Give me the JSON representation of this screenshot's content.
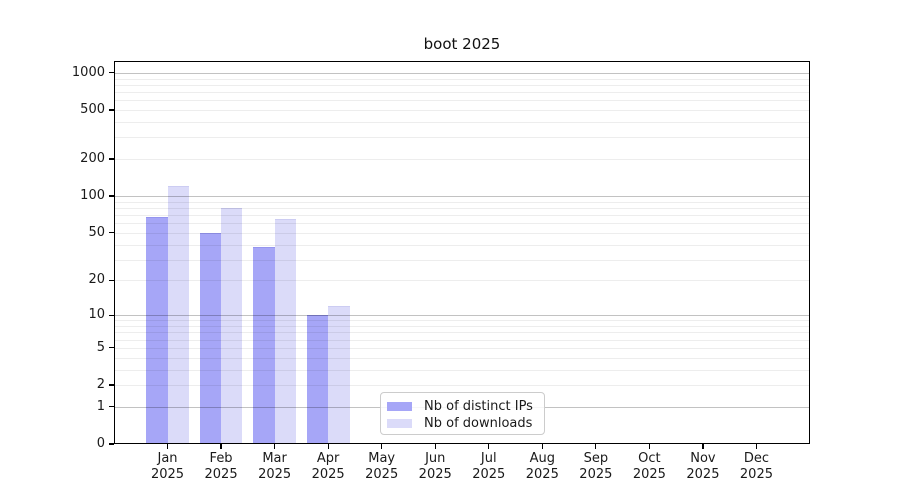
{
  "chart_data": {
    "type": "bar",
    "title": "boot 2025",
    "categories": [
      "Jan 2025",
      "Feb 2025",
      "Mar 2025",
      "Apr 2025",
      "May 2025",
      "Jun 2025",
      "Jul 2025",
      "Aug 2025",
      "Sep 2025",
      "Oct 2025",
      "Nov 2025",
      "Dec 2025"
    ],
    "series": [
      {
        "name": "Nb of distinct IPs",
        "color": "#a6a6f7",
        "edge_color": "#9595ef",
        "values": [
          67,
          50,
          38,
          10,
          0,
          0,
          0,
          0,
          0,
          0,
          0,
          0
        ]
      },
      {
        "name": "Nb of downloads",
        "color": "#dbdbf9",
        "edge_color": "#ccccf2",
        "values": [
          120,
          80,
          65,
          12,
          0,
          0,
          0,
          0,
          0,
          0,
          0,
          0
        ]
      }
    ],
    "yscale": "log1p",
    "ylim": [
      0,
      1238
    ],
    "ytick_values": [
      0,
      1,
      2,
      5,
      10,
      20,
      50,
      100,
      200,
      500,
      1000
    ],
    "grid": {
      "orientation": "horizontal",
      "major_color": "rgba(0,0,0,0.24)",
      "minor_color": "rgba(0,0,0,0.07)"
    },
    "legend_position": "inside-bottom-center"
  }
}
